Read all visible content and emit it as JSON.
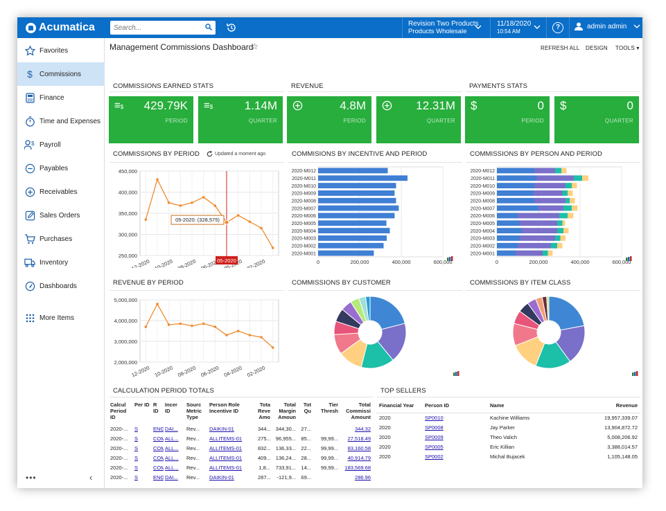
{
  "topbar": {
    "brand": "Acumatica",
    "search_placeholder": "Search...",
    "branch_line1": "Revision Two Products",
    "branch_line2": "Products Wholesale",
    "date": "11/18/2020",
    "time": "10:54 AM",
    "help": "?",
    "user": "admin admin"
  },
  "sidebar": {
    "items": [
      {
        "label": "Favorites",
        "icon": "star-icon"
      },
      {
        "label": "Commissions",
        "icon": "dollar-icon"
      },
      {
        "label": "Finance",
        "icon": "calculator-icon"
      },
      {
        "label": "Time and Expenses",
        "icon": "stopwatch-icon"
      },
      {
        "label": "Payroll",
        "icon": "payroll-icon"
      },
      {
        "label": "Payables",
        "icon": "minus-circle-icon"
      },
      {
        "label": "Receivables",
        "icon": "plus-circle-icon"
      },
      {
        "label": "Sales Orders",
        "icon": "edit-icon"
      },
      {
        "label": "Purchases",
        "icon": "cart-icon"
      },
      {
        "label": "Inventory",
        "icon": "truck-icon"
      },
      {
        "label": "Dashboards",
        "icon": "gauge-icon"
      },
      {
        "label": "More Items",
        "icon": "grid-icon"
      }
    ],
    "footer_dots": "•••",
    "collapse": "‹"
  },
  "page": {
    "title": "Management Commissions Dashboard",
    "refresh": "REFRESH ALL",
    "design": "DESIGN",
    "tools": "TOOLS"
  },
  "stats": {
    "commissions_title": "COMMISSIONS EARNED STATS",
    "revenue_title": "REVENUE",
    "payments_title": "PAYMENTS STATS",
    "tiles": [
      {
        "value": "429.79K",
        "label": "PERIOD"
      },
      {
        "value": "1.14M",
        "label": "QUARTER"
      },
      {
        "value": "4.8M",
        "label": "PERIOD"
      },
      {
        "value": "12.31M",
        "label": "QUARTER"
      },
      {
        "value": "0",
        "label": "PERIOD"
      },
      {
        "value": "0",
        "label": "QUARTER"
      }
    ]
  },
  "charts": {
    "comm_period": {
      "title": "COMMISSIONS BY PERIOD",
      "updated": "Updated a moment ago",
      "tooltip": "05-2020: (328,575)",
      "marker": "05-2020",
      "yticks": [
        "450,000",
        "400,000",
        "350,000",
        "300,000",
        "250,000"
      ],
      "xticks": [
        "12-2020",
        "10-2020",
        "08-2020",
        "06-2020",
        "05-2020",
        "02-2020"
      ]
    },
    "incentive": {
      "title": "COMMISIONS BY INCENTIVE AND PERIOD",
      "xticks": [
        "0",
        "200,000",
        "400,000",
        "600,000"
      ]
    },
    "person": {
      "title": "COMMISSIONS BY PERSON AND PERIOD",
      "xticks": [
        "0",
        "200,000",
        "400,000",
        "600,000"
      ]
    },
    "rev_period": {
      "title": "REVENUE BY PERIOD",
      "yticks": [
        "5,000,000",
        "4,000,000",
        "3,000,000",
        "2,000,000"
      ],
      "xticks": [
        "12-2020",
        "10-2020",
        "08-2020",
        "06-2020",
        "04-2020",
        "02-2020"
      ]
    },
    "customer": {
      "title": "COMMISSIONS BY CUSTOMER"
    },
    "itemclass": {
      "title": "COMMISSIONS BY ITEM CLASS"
    }
  },
  "chart_data": [
    {
      "type": "line",
      "title": "COMMISSIONS BY PERIOD",
      "x": [
        "12-2020",
        "11-2020",
        "10-2020",
        "09-2020",
        "08-2020",
        "07-2020",
        "06-2020",
        "05-2020",
        "04-2020",
        "03-2020",
        "02-2020",
        "01-2020"
      ],
      "values": [
        335000,
        430000,
        375000,
        368000,
        375000,
        388000,
        368000,
        328575,
        345000,
        330000,
        315000,
        268000
      ],
      "ylim": [
        250000,
        450000
      ]
    },
    {
      "type": "bar",
      "title": "COMMISIONS BY INCENTIVE AND PERIOD",
      "categories": [
        "2020-M012",
        "2020-M011",
        "2020-M010",
        "2020-M009",
        "2020-M008",
        "2020-M007",
        "2020-M006",
        "2020-M005",
        "2020-M004",
        "2020-M003",
        "2020-M002",
        "2020-M001"
      ],
      "values": [
        335000,
        430000,
        375000,
        368000,
        375000,
        388000,
        368000,
        328575,
        345000,
        330000,
        315000,
        268000
      ],
      "xlim": [
        0,
        600000
      ]
    },
    {
      "type": "bar",
      "title": "COMMISSIONS BY PERSON AND PERIOD",
      "categories": [
        "2020-M012",
        "2020-M011",
        "2020-M010",
        "2020-M009",
        "2020-M008",
        "2020-M007",
        "2020-M006",
        "2020-M005",
        "2020-M004",
        "2020-M003",
        "2020-M002",
        "2020-M001"
      ],
      "series": [
        {
          "values": [
            180000,
            190000,
            180000,
            175000,
            180000,
            200000,
            100000,
            110000,
            120000,
            110000,
            100000,
            90000
          ]
        },
        {
          "values": [
            100000,
            180000,
            150000,
            140000,
            150000,
            120000,
            200000,
            180000,
            170000,
            170000,
            160000,
            130000
          ]
        },
        {
          "values": [
            30000,
            40000,
            30000,
            25000,
            20000,
            40000,
            40000,
            25000,
            30000,
            25000,
            30000,
            25000
          ]
        },
        {
          "values": [
            25000,
            30000,
            25000,
            25000,
            25000,
            28000,
            28000,
            13575,
            25000,
            25000,
            25000,
            23000
          ]
        }
      ],
      "xlim": [
        0,
        600000
      ]
    },
    {
      "type": "line",
      "title": "REVENUE BY PERIOD",
      "x": [
        "12-2020",
        "11-2020",
        "10-2020",
        "09-2020",
        "08-2020",
        "07-2020",
        "06-2020",
        "05-2020",
        "04-2020",
        "03-2020",
        "02-2020",
        "01-2020"
      ],
      "values": [
        3700000,
        4800000,
        3800000,
        3850000,
        3750000,
        3850000,
        3700000,
        3300000,
        3500000,
        3300000,
        3200000,
        2700000
      ],
      "ylim": [
        2000000,
        5000000
      ]
    },
    {
      "type": "pie",
      "title": "COMMISSIONS BY CUSTOMER",
      "values": [
        21,
        18,
        15,
        11,
        9,
        6,
        6,
        5,
        4,
        3,
        2
      ],
      "colors": [
        "#3f87d4",
        "#7a6fc9",
        "#1cbfa8",
        "#ffd080",
        "#f0788a",
        "#e8547a",
        "#34395f",
        "#9a6dd0",
        "#b6ea7a",
        "#9fe0d8",
        "#2a9bd6"
      ]
    },
    {
      "type": "pie",
      "title": "COMMISSIONS BY ITEM CLASS",
      "values": [
        22,
        18,
        16,
        13,
        10,
        6,
        5,
        4,
        3,
        2,
        1
      ],
      "colors": [
        "#3f87d4",
        "#7a6fc9",
        "#1cbfa8",
        "#ffd080",
        "#f0788a",
        "#e8547a",
        "#34395f",
        "#9a6dd0",
        "#f1a07a",
        "#6b2c3e",
        "#b6ea7a"
      ]
    }
  ],
  "calc": {
    "title": "CALCULATION PERIOD TOTALS",
    "headers": [
      "Calcul Period ID",
      "Per ID",
      "R ID",
      "Incer ID",
      "Sourc Metric Type",
      "Person Role Incentive ID",
      "Tota Reve Amo",
      "Total Margin Amoun",
      "Tot Qu",
      "Tier Thresh",
      "Total Commissi Amount"
    ],
    "rows": [
      [
        "2020-...",
        "S",
        "ENG",
        "DAI...",
        "Rev...",
        "DAIKIN-01",
        "344...",
        "344,30...",
        "27...",
        "",
        "344.32"
      ],
      [
        "2020-...",
        "S",
        "COM",
        "ALL...",
        "Rev...",
        "ALLITEMS-01",
        "275...",
        "96,955...",
        "85...",
        "99,99...",
        "27,518.49"
      ],
      [
        "2020-...",
        "S",
        "COM",
        "ALL...",
        "Rev...",
        "ALLITEMS-01",
        "832...",
        "136,33...",
        "22...",
        "99,99...",
        "83,160.58"
      ],
      [
        "2020-...",
        "S",
        "COM",
        "ALL...",
        "Rev...",
        "ALLITEMS-01",
        "409...",
        "136,24...",
        "28...",
        "99,99...",
        "40,914.79"
      ],
      [
        "2020-...",
        "S",
        "COM",
        "ALL...",
        "Rev...",
        "ALLITEMS-01",
        "1,8...",
        "733,91...",
        "14...",
        "99,99...",
        "183,569.68"
      ],
      [
        "2020-...",
        "S",
        "ENG",
        "DAI...",
        "Rev...",
        "DAIKIN-01",
        "287...",
        "-121,9...",
        "69...",
        "",
        "286.96"
      ]
    ]
  },
  "sellers": {
    "title": "TOP SELLERS",
    "headers": [
      "Financial Year",
      "Person ID",
      "Name",
      "Revenue"
    ],
    "rows": [
      [
        "2020",
        "SP0010",
        "Kachine Williams",
        "19,957,339.07"
      ],
      [
        "2020",
        "SP0008",
        "Jay Parker",
        "13,904,872.72"
      ],
      [
        "2020",
        "SP0009",
        "Theo Valich",
        "5,008,206.92"
      ],
      [
        "2020",
        "SP0005",
        "Eric Killian",
        "3,388,014.57"
      ],
      [
        "2020",
        "SP0002",
        "Michal Bujacek",
        "1,105,148.05"
      ]
    ]
  }
}
